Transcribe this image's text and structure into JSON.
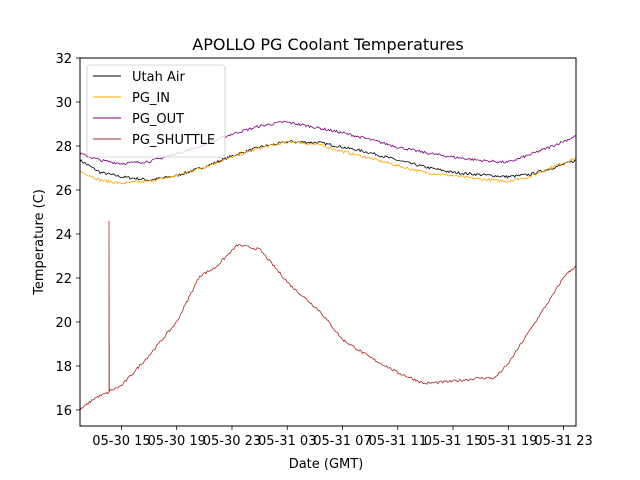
{
  "chart_data": {
    "type": "line",
    "title": "APOLLO PG Coolant Temperatures",
    "xlabel": "Date (GMT)",
    "ylabel": "Temperature (C)",
    "x_units": "hours since 05-30 00:00 GMT",
    "xlim": [
      12.0,
      47.9
    ],
    "ylim": [
      15.27,
      32.0
    ],
    "x_ticks": [
      {
        "value": 15,
        "label": "05-30 15"
      },
      {
        "value": 19,
        "label": "05-30 19"
      },
      {
        "value": 23,
        "label": "05-30 23"
      },
      {
        "value": 27,
        "label": "05-31 03"
      },
      {
        "value": 31,
        "label": "05-31 07"
      },
      {
        "value": 35,
        "label": "05-31 11"
      },
      {
        "value": 39,
        "label": "05-31 15"
      },
      {
        "value": 43,
        "label": "05-31 19"
      },
      {
        "value": 47,
        "label": "05-31 23"
      }
    ],
    "y_ticks": [
      16,
      18,
      20,
      22,
      24,
      26,
      28,
      30,
      32
    ],
    "grid": false,
    "legend_position": "top-left",
    "series": [
      {
        "name": "Utah Air",
        "color": "#000000",
        "x": [
          12.0,
          13.45,
          15.0,
          17.03,
          19.0,
          21.01,
          23.03,
          24.99,
          27.16,
          29.33,
          31.0,
          32.96,
          34.99,
          36.93,
          38.96,
          40.91,
          42.94,
          44.54,
          46.2,
          47.9
        ],
        "y": [
          27.35,
          26.8,
          26.6,
          26.45,
          26.65,
          27.05,
          27.55,
          27.95,
          28.2,
          28.15,
          27.95,
          27.7,
          27.35,
          27.05,
          26.8,
          26.7,
          26.6,
          26.7,
          27.0,
          27.35
        ]
      },
      {
        "name": "PG_IN",
        "color": "#ffa500",
        "x": [
          12.0,
          13.45,
          15.0,
          17.03,
          19.0,
          21.01,
          23.03,
          24.99,
          27.16,
          29.33,
          31.0,
          32.96,
          34.99,
          36.93,
          38.96,
          40.91,
          42.94,
          44.54,
          46.2,
          47.9
        ],
        "y": [
          26.85,
          26.45,
          26.3,
          26.4,
          26.65,
          27.05,
          27.5,
          27.9,
          28.2,
          28.05,
          27.75,
          27.45,
          27.1,
          26.8,
          26.65,
          26.5,
          26.4,
          26.6,
          27.05,
          27.45
        ]
      },
      {
        "name": "PG_OUT",
        "color": "#800080",
        "x": [
          12.0,
          13.45,
          15.0,
          17.03,
          19.0,
          21.01,
          23.03,
          24.99,
          26.8,
          28.61,
          31.0,
          32.96,
          34.99,
          36.93,
          38.96,
          40.91,
          42.94,
          44.54,
          46.2,
          47.9
        ],
        "y": [
          27.65,
          27.35,
          27.2,
          27.3,
          27.65,
          28.05,
          28.55,
          28.9,
          29.1,
          28.9,
          28.6,
          28.3,
          27.95,
          27.7,
          27.5,
          27.35,
          27.25,
          27.6,
          28.0,
          28.45
        ]
      },
      {
        "name": "PG_SHUTTLE",
        "color": "#a52a2a",
        "x": [
          12.0,
          13.1,
          14.1,
          14.1,
          14.12,
          15.0,
          17.03,
          19.0,
          20.67,
          21.75,
          23.41,
          25.0,
          27.17,
          29.35,
          31.0,
          32.96,
          34.99,
          36.93,
          38.96,
          40.91,
          42.0,
          42.94,
          44.54,
          46.2,
          47.07,
          47.9
        ],
        "y": [
          16.0,
          16.55,
          16.8,
          24.6,
          16.85,
          17.1,
          18.5,
          20.0,
          22.1,
          22.45,
          23.5,
          23.3,
          21.7,
          20.5,
          19.2,
          18.4,
          17.7,
          17.2,
          17.3,
          17.45,
          17.45,
          18.05,
          19.6,
          21.2,
          22.1,
          22.55
        ]
      }
    ]
  }
}
